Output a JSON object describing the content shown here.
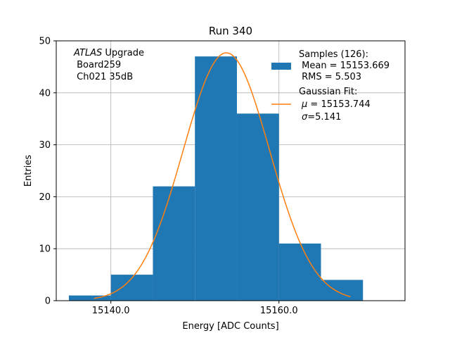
{
  "chart_data": {
    "type": "bar",
    "title": "Run 340",
    "xlabel": "Energy [ADC Counts]",
    "ylabel": "Entries",
    "xlim": [
      15133.5,
      15175
    ],
    "ylim": [
      0,
      50
    ],
    "x_ticks": [
      15140,
      15160
    ],
    "x_tick_labels": [
      "15140.0",
      "15160.0"
    ],
    "y_ticks": [
      0,
      10,
      20,
      30,
      40,
      50
    ],
    "y_tick_labels": [
      "0",
      "10",
      "20",
      "30",
      "40",
      "50"
    ],
    "grid": true,
    "bins": [
      {
        "x0": 15135,
        "x1": 15140,
        "count": 1
      },
      {
        "x0": 15140,
        "x1": 15145,
        "count": 5
      },
      {
        "x0": 15145,
        "x1": 15150,
        "count": 22
      },
      {
        "x0": 15150,
        "x1": 15155,
        "count": 47
      },
      {
        "x0": 15155,
        "x1": 15160,
        "count": 36
      },
      {
        "x0": 15160,
        "x1": 15165,
        "count": 11
      },
      {
        "x0": 15165,
        "x1": 15170,
        "count": 4
      }
    ],
    "gaussian_fit": {
      "mu": 15153.744,
      "sigma": 5.141,
      "amplitude": 47.7,
      "x_range": [
        15138,
        15168.5
      ]
    },
    "colors": {
      "histogram": "#1f77b4",
      "fit": "#ff7f0e",
      "grid": "#b0b0b0"
    },
    "annotation": {
      "line1_italic": "ATLAS",
      "line1_rest": " Upgrade",
      "line2": " Board259",
      "line3": " Ch021 35dB"
    },
    "legend": {
      "position": "top-right",
      "samples_title": "Samples (126):",
      "samples_mean": " Mean = 15153.669",
      "samples_rms": " RMS = 5.503",
      "fit_title": "Gaussian Fit:",
      "fit_mu_symbol": "μ",
      "fit_mu_rest": " = 15153.744",
      "fit_sigma_symbol": "σ",
      "fit_sigma_rest": "=5.141"
    }
  }
}
